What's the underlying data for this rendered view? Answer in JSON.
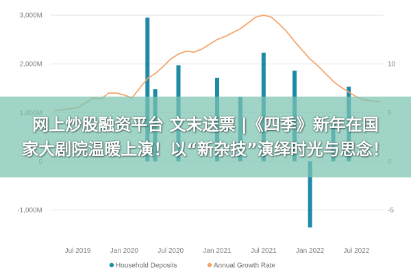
{
  "chart_data": {
    "type": "bar",
    "x": [
      "2019-04",
      "2019-05",
      "2019-06",
      "2019-07",
      "2019-08",
      "2019-09",
      "2019-10",
      "2019-11",
      "2019-12",
      "2020-01",
      "2020-02",
      "2020-03",
      "2020-04",
      "2020-05",
      "2020-06",
      "2020-07",
      "2020-08",
      "2020-09",
      "2020-10",
      "2020-11",
      "2020-12",
      "2021-01",
      "2021-02",
      "2021-03",
      "2021-04",
      "2021-05",
      "2021-06",
      "2021-07",
      "2021-08",
      "2021-09",
      "2021-10",
      "2021-11",
      "2021-12",
      "2022-01",
      "2022-02",
      "2022-03",
      "2022-04",
      "2022-05",
      "2022-06",
      "2022-07",
      "2022-08",
      "2022-09",
      "2022-10"
    ],
    "x_tick_labels": [
      "Jul 2019",
      "Jan 2020",
      "Jul 2020",
      "Jan 2021",
      "Jul 2021",
      "Jan 2022",
      "Jul 2022"
    ],
    "x_tick_dates": [
      "2019-07",
      "2020-01",
      "2020-07",
      "2021-01",
      "2021-07",
      "2022-01",
      "2022-07"
    ],
    "series": [
      {
        "name": "Household Deposits",
        "type": "bar",
        "axis": "left",
        "color": "#1f8aa6",
        "values": [
          null,
          null,
          null,
          null,
          null,
          null,
          null,
          null,
          null,
          null,
          null,
          null,
          2950,
          1480,
          null,
          null,
          1970,
          null,
          null,
          null,
          null,
          1710,
          null,
          null,
          1320,
          null,
          null,
          2230,
          null,
          null,
          null,
          1860,
          null,
          -1360,
          null,
          null,
          820,
          null,
          1530,
          null,
          null,
          null,
          null
        ]
      },
      {
        "name": "Annual Growth Rate",
        "type": "line",
        "axis": "right",
        "color": "#f4a46b",
        "values": [
          5.2,
          5.3,
          5.4,
          5.5,
          6.0,
          6.5,
          6.4,
          7.0,
          7.0,
          6.8,
          6.5,
          7.5,
          8.5,
          9.0,
          9.7,
          10.5,
          11.0,
          11.3,
          11.2,
          11.5,
          12.0,
          12.5,
          12.8,
          13.2,
          13.6,
          14.2,
          14.8,
          15.0,
          14.8,
          14.1,
          13.3,
          12.3,
          11.4,
          10.5,
          9.8,
          9.0,
          8.2,
          7.6,
          7.1,
          6.6,
          6.3,
          6.2,
          6.1
        ]
      }
    ],
    "y_left": {
      "ticks": [
        3000,
        2000,
        1000,
        0,
        -1000
      ],
      "tick_labels": [
        "3,000M",
        "2,000M",
        "1,000M",
        "0",
        "-1,000M"
      ],
      "range": [
        -1500,
        3100
      ]
    },
    "y_right": {
      "ticks": [
        10,
        5,
        0,
        -5
      ],
      "tick_labels": [
        "10",
        "5",
        "0",
        "-5"
      ],
      "range": [
        -7.5,
        15.5
      ]
    },
    "grid": true,
    "legend": {
      "placement": "bottom",
      "items": [
        {
          "name": "Household Deposits",
          "color": "#1f8aa6",
          "marker": "dot"
        },
        {
          "name": "Annual Growth Rate",
          "color": "#f4a46b",
          "marker": "dot"
        }
      ]
    }
  },
  "overlay": {
    "line1": "网上炒股融资平台 文末送票 |《四季》新年在国",
    "line2": "家大剧院温暖上演！以“新杂技”演绎时光与思念！"
  }
}
